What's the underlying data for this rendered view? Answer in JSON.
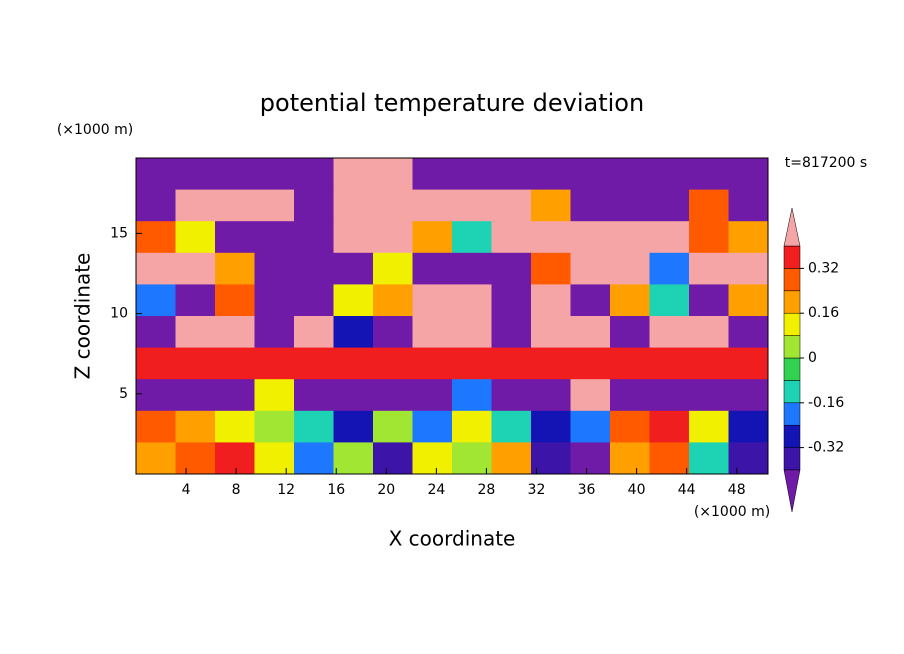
{
  "chart_data": {
    "type": "contourf",
    "title": "potential temperature deviation",
    "x_label": "X coordinate",
    "y_label": "Z coordinate",
    "x_unit": "(×1000 m)",
    "y_unit": "(×1000 m)",
    "annotation": "t=817200 s",
    "xlim": [
      0,
      50.5
    ],
    "ylim": [
      0,
      19.7
    ],
    "xticks": [
      4,
      8,
      12,
      16,
      20,
      24,
      28,
      32,
      36,
      40,
      44,
      48
    ],
    "yticks": [
      5,
      10,
      15
    ],
    "levels": [
      -0.4,
      -0.32,
      -0.24,
      -0.16,
      -0.08,
      0,
      0.08,
      0.16,
      0.24,
      0.32,
      0.4
    ],
    "colors": [
      "#701aa8",
      "#3c14a8",
      "#1414b4",
      "#1e78ff",
      "#1ed2b4",
      "#32d250",
      "#a0e632",
      "#f0f000",
      "#ffa000",
      "#ff5a00",
      "#f01e1e",
      "#f5a5a5"
    ],
    "colorbar_ticks": [
      0.32,
      0.16,
      0,
      -0.16,
      -0.32
    ],
    "z": [
      [
        -0.5,
        -0.5,
        -0.5,
        -0.5,
        -0.5,
        0.5,
        0.5,
        -0.5,
        -0.5,
        -0.5,
        -0.5,
        -0.5,
        -0.5,
        -0.5,
        -0.5,
        -0.5
      ],
      [
        -0.5,
        0.5,
        0.5,
        0.5,
        -0.5,
        0.5,
        0.5,
        0.5,
        0.5,
        0.5,
        0.2,
        -0.5,
        -0.5,
        -0.5,
        0.3,
        -0.5
      ],
      [
        0.3,
        0.1,
        -0.5,
        -0.5,
        -0.5,
        0.5,
        0.5,
        0.2,
        -0.1,
        0.5,
        0.5,
        0.5,
        0.5,
        0.5,
        0.3,
        0.2
      ],
      [
        0.5,
        0.5,
        0.2,
        -0.5,
        -0.5,
        -0.5,
        0.1,
        -0.5,
        -0.5,
        -0.5,
        0.3,
        0.5,
        0.5,
        -0.2,
        0.5,
        0.5
      ],
      [
        -0.2,
        -0.5,
        0.3,
        -0.5,
        -0.5,
        0.1,
        0.2,
        0.5,
        0.5,
        -0.5,
        0.5,
        -0.5,
        0.2,
        -0.1,
        -0.5,
        0.2
      ],
      [
        -0.5,
        0.5,
        0.5,
        -0.5,
        0.5,
        -0.3,
        -0.5,
        0.5,
        0.5,
        -0.5,
        0.5,
        0.5,
        -0.5,
        0.5,
        0.5,
        -0.5
      ],
      [
        0.35,
        0.35,
        0.35,
        0.35,
        0.35,
        0.35,
        0.35,
        0.35,
        0.35,
        0.35,
        0.35,
        0.35,
        0.35,
        0.35,
        0.35,
        0.35
      ],
      [
        -0.5,
        -0.5,
        -0.5,
        0.1,
        -0.5,
        -0.5,
        -0.5,
        -0.5,
        -0.2,
        -0.5,
        -0.5,
        0.5,
        -0.5,
        -0.5,
        -0.5,
        -0.5
      ],
      [
        0.3,
        0.2,
        0.1,
        0,
        -0.1,
        -0.3,
        0,
        -0.2,
        0.1,
        -0.1,
        -0.3,
        -0.2,
        0.3,
        0.35,
        0.1,
        -0.3
      ],
      [
        0.2,
        0.3,
        0.35,
        0.1,
        -0.2,
        0,
        -0.35,
        0.1,
        0,
        0.2,
        -0.4,
        -0.5,
        0.2,
        0.3,
        -0.1,
        -0.4
      ]
    ]
  }
}
